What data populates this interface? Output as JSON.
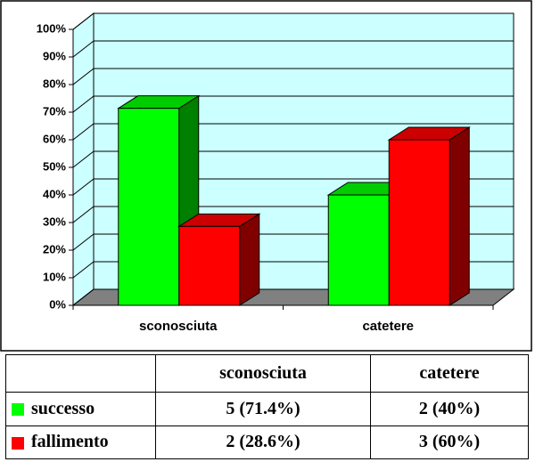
{
  "chart_data": {
    "type": "bar3d",
    "categories": [
      "sconosciuta",
      "catetere"
    ],
    "series": [
      {
        "name": "successo",
        "color": "#00ff00",
        "values": [
          71.4,
          40
        ],
        "value_labels": [
          "5 (71.4%)",
          "2 (40%)"
        ]
      },
      {
        "name": "fallimento",
        "color": "#ff0000",
        "values": [
          28.6,
          60
        ],
        "value_labels": [
          "2 (28.6%)",
          "3 (60%)"
        ]
      }
    ],
    "ylim": [
      0,
      100
    ],
    "yticks": [
      {
        "value": 0,
        "label": "0%"
      },
      {
        "value": 10,
        "label": "10%"
      },
      {
        "value": 20,
        "label": "20%"
      },
      {
        "value": 30,
        "label": "30%"
      },
      {
        "value": 40,
        "label": "40%"
      },
      {
        "value": 50,
        "label": "50%"
      },
      {
        "value": 60,
        "label": "60%"
      },
      {
        "value": 70,
        "label": "70%"
      },
      {
        "value": 80,
        "label": "80%"
      },
      {
        "value": 90,
        "label": "90%"
      },
      {
        "value": 100,
        "label": "100%"
      }
    ],
    "grid": true
  }
}
